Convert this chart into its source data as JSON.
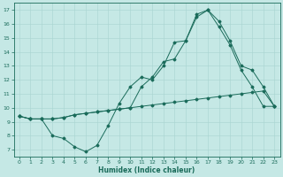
{
  "xlabel": "Humidex (Indice chaleur)",
  "bg_color": "#c5e8e5",
  "grid_color": "#a8d4d0",
  "line_color": "#1a6b5a",
  "xlim": [
    -0.5,
    23.5
  ],
  "ylim": [
    6.5,
    17.5
  ],
  "xticks": [
    0,
    1,
    2,
    3,
    4,
    5,
    6,
    7,
    8,
    9,
    10,
    11,
    12,
    13,
    14,
    15,
    16,
    17,
    18,
    19,
    20,
    21,
    22,
    23
  ],
  "yticks": [
    7,
    8,
    9,
    10,
    11,
    12,
    13,
    14,
    15,
    16,
    17
  ],
  "line1_x": [
    0,
    1,
    2,
    3,
    4,
    5,
    6,
    7,
    8,
    9,
    10,
    11,
    12,
    13,
    14,
    15,
    16,
    17,
    18,
    19,
    20,
    21,
    22,
    23
  ],
  "line1_y": [
    9.4,
    9.2,
    9.2,
    9.2,
    9.3,
    9.5,
    9.6,
    9.7,
    9.8,
    9.9,
    10.0,
    10.1,
    10.2,
    10.3,
    10.4,
    10.5,
    10.6,
    10.7,
    10.8,
    10.9,
    11.0,
    11.1,
    11.2,
    10.1
  ],
  "line2_x": [
    0,
    1,
    2,
    3,
    4,
    5,
    6,
    7,
    8,
    9,
    10,
    11,
    12,
    13,
    14,
    15,
    16,
    17,
    18,
    19,
    20,
    21,
    22,
    23
  ],
  "line2_y": [
    9.4,
    9.2,
    9.2,
    8.0,
    7.8,
    7.2,
    6.85,
    7.3,
    8.7,
    10.3,
    11.5,
    12.2,
    12.0,
    13.0,
    14.7,
    14.8,
    16.7,
    17.0,
    15.8,
    14.5,
    12.7,
    11.5,
    10.1,
    10.1
  ],
  "line3_x": [
    0,
    1,
    2,
    3,
    4,
    5,
    6,
    7,
    8,
    9,
    10,
    11,
    12,
    13,
    14,
    15,
    16,
    17,
    18,
    19,
    20,
    21,
    22,
    23
  ],
  "line3_y": [
    9.4,
    9.2,
    9.2,
    9.2,
    9.3,
    9.5,
    9.6,
    9.7,
    9.8,
    9.9,
    10.0,
    11.5,
    12.2,
    13.3,
    13.5,
    14.8,
    16.5,
    17.0,
    16.2,
    14.8,
    13.0,
    12.7,
    11.5,
    10.1
  ]
}
